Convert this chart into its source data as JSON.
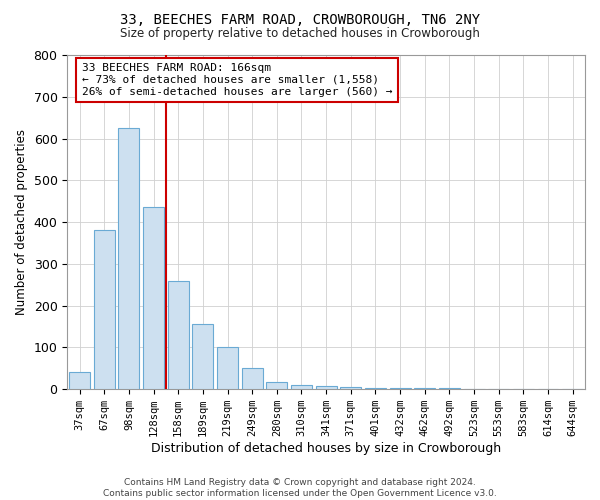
{
  "title": "33, BEECHES FARM ROAD, CROWBOROUGH, TN6 2NY",
  "subtitle": "Size of property relative to detached houses in Crowborough",
  "xlabel": "Distribution of detached houses by size in Crowborough",
  "ylabel": "Number of detached properties",
  "bar_labels": [
    "37sqm",
    "67sqm",
    "98sqm",
    "128sqm",
    "158sqm",
    "189sqm",
    "219sqm",
    "249sqm",
    "280sqm",
    "310sqm",
    "341sqm",
    "371sqm",
    "401sqm",
    "432sqm",
    "462sqm",
    "492sqm",
    "523sqm",
    "553sqm",
    "583sqm",
    "614sqm",
    "644sqm"
  ],
  "bar_values": [
    42,
    380,
    625,
    435,
    260,
    155,
    100,
    50,
    18,
    10,
    8,
    5,
    4,
    3,
    2,
    2,
    1,
    1,
    1,
    0,
    1
  ],
  "bar_color": "#cde0f0",
  "bar_edge_color": "#6aaad4",
  "vline_color": "#cc0000",
  "vline_x_index": 3.5,
  "annotation_text": "33 BEECHES FARM ROAD: 166sqm\n← 73% of detached houses are smaller (1,558)\n26% of semi-detached houses are larger (560) →",
  "annotation_box_color": "#ffffff",
  "annotation_box_edge_color": "#cc0000",
  "footnote": "Contains HM Land Registry data © Crown copyright and database right 2024.\nContains public sector information licensed under the Open Government Licence v3.0.",
  "ylim": [
    0,
    800
  ],
  "yticks": [
    0,
    100,
    200,
    300,
    400,
    500,
    600,
    700,
    800
  ],
  "bg_color": "#ffffff",
  "grid_color": "#d0d0d0"
}
